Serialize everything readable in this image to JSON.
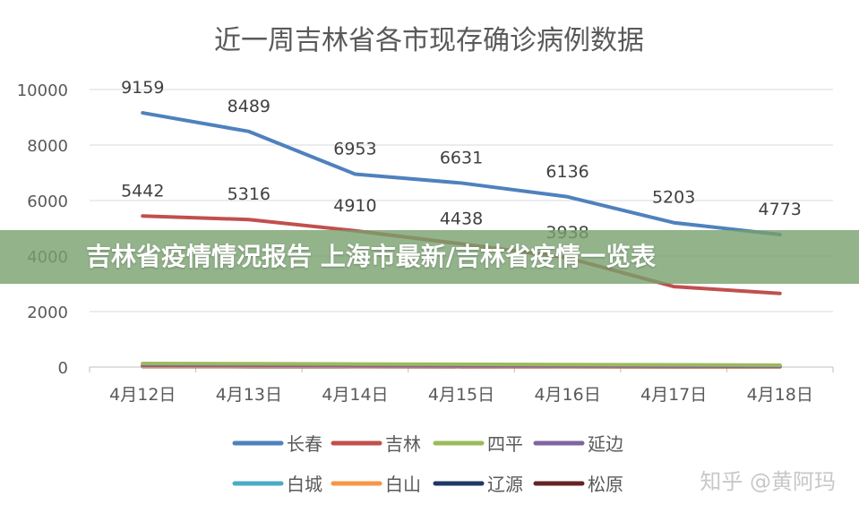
{
  "chart_data": {
    "type": "line",
    "title": "近一周吉林省各市现存确诊病例数据",
    "categories": [
      "4月12日",
      "4月13日",
      "4月14日",
      "4月15日",
      "4月16日",
      "4月17日",
      "4月18日"
    ],
    "ylim": [
      0,
      10000
    ],
    "yticks": [
      "0",
      "2000",
      "4000",
      "6000",
      "8000",
      "10000"
    ],
    "grid": true,
    "legend_position": "bottom",
    "series": [
      {
        "name": "长春",
        "color": "#4f81bd",
        "values": [
          9159,
          8489,
          6953,
          6631,
          6136,
          5203,
          4773
        ],
        "labels": [
          "9159",
          "8489",
          "6953",
          "6631",
          "6136",
          "5203",
          "4773"
        ]
      },
      {
        "name": "吉林",
        "color": "#c0504d",
        "values": [
          5442,
          5316,
          4910,
          4438,
          3938,
          2900,
          2654
        ],
        "labels": [
          "5442",
          "5316",
          "4910",
          "4438",
          "3938",
          "",
          ""
        ]
      },
      {
        "name": "四平",
        "color": "#9bbb59",
        "values": [
          130,
          120,
          110,
          100,
          90,
          80,
          70
        ],
        "labels": []
      },
      {
        "name": "延边",
        "color": "#8064a2",
        "values": [
          60,
          55,
          50,
          45,
          40,
          35,
          30
        ],
        "labels": []
      },
      {
        "name": "白城",
        "color": "#4bacc6",
        "values": [
          80,
          75,
          70,
          65,
          60,
          55,
          50
        ],
        "labels": []
      },
      {
        "name": "白山",
        "color": "#f79646",
        "values": [
          30,
          28,
          26,
          24,
          22,
          20,
          18
        ],
        "labels": []
      },
      {
        "name": "辽源",
        "color": "#1f3864",
        "values": [
          40,
          38,
          36,
          34,
          32,
          30,
          28
        ],
        "labels": []
      },
      {
        "name": "松原",
        "color": "#632523",
        "values": [
          20,
          18,
          16,
          14,
          12,
          10,
          8
        ],
        "labels": []
      }
    ]
  },
  "banner": {
    "text": "吉林省疫情情况报告 上海市最新/吉林省疫情一览表"
  },
  "watermark": {
    "text": "知乎 @黄阿玛"
  }
}
